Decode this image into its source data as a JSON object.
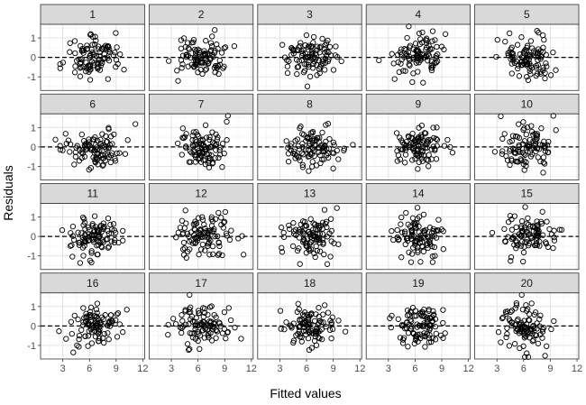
{
  "chart_data": {
    "type": "scatter",
    "layout": "facet-grid",
    "xlabel": "Fitted values",
    "ylabel": "Residuals",
    "xlim": [
      0.5,
      12.2
    ],
    "ylim": [
      -1.7,
      1.7
    ],
    "x_ticks": [
      3,
      6,
      9,
      12
    ],
    "y_ticks": [
      -1,
      0,
      1
    ],
    "reference_line": {
      "y": 0,
      "style": "dashed"
    },
    "grid": true,
    "panel_background": "#ffffff",
    "strip_background": "#d9d9d9",
    "point_style": "open-circle",
    "points_per_panel": 100,
    "panels": [
      {
        "label": "1",
        "x_range": [
          1.2,
          11.8
        ],
        "spread": 0.55,
        "seed": 11
      },
      {
        "label": "2",
        "x_range": [
          1.2,
          11.8
        ],
        "spread": 0.55,
        "seed": 12
      },
      {
        "label": "3",
        "x_range": [
          1.2,
          11.8
        ],
        "spread": 0.55,
        "seed": 13
      },
      {
        "label": "4",
        "x_range": [
          1.2,
          11.8
        ],
        "spread": 0.55,
        "seed": 14
      },
      {
        "label": "5",
        "x_range": [
          1.2,
          11.8
        ],
        "spread": 0.55,
        "seed": 15
      },
      {
        "label": "6",
        "x_range": [
          1.2,
          11.8
        ],
        "spread": 0.5,
        "seed": 16
      },
      {
        "label": "7",
        "x_range": [
          1.2,
          11.8
        ],
        "spread": 0.5,
        "seed": 17
      },
      {
        "label": "8",
        "x_range": [
          1.2,
          11.8
        ],
        "spread": 0.5,
        "seed": 18
      },
      {
        "label": "9",
        "x_range": [
          1.2,
          11.8
        ],
        "spread": 0.45,
        "seed": 19
      },
      {
        "label": "10",
        "x_range": [
          1.2,
          11.8
        ],
        "spread": 0.55,
        "seed": 20
      },
      {
        "label": "11",
        "x_range": [
          1.2,
          11.8
        ],
        "spread": 0.5,
        "seed": 21
      },
      {
        "label": "12",
        "x_range": [
          1.2,
          11.8
        ],
        "spread": 0.5,
        "seed": 22
      },
      {
        "label": "13",
        "x_range": [
          1.2,
          11.8
        ],
        "spread": 0.5,
        "seed": 23
      },
      {
        "label": "14",
        "x_range": [
          1.2,
          11.8
        ],
        "spread": 0.55,
        "seed": 24
      },
      {
        "label": "15",
        "x_range": [
          1.2,
          11.8
        ],
        "spread": 0.55,
        "seed": 25
      },
      {
        "label": "16",
        "x_range": [
          1.2,
          11.8
        ],
        "spread": 0.5,
        "seed": 26
      },
      {
        "label": "17",
        "x_range": [
          1.2,
          11.8
        ],
        "spread": 0.5,
        "seed": 27
      },
      {
        "label": "18",
        "x_range": [
          1.2,
          11.8
        ],
        "spread": 0.5,
        "seed": 28
      },
      {
        "label": "19",
        "x_range": [
          1.2,
          11.8
        ],
        "spread": 0.5,
        "seed": 29
      },
      {
        "label": "20",
        "x_range": [
          1.2,
          11.8
        ],
        "spread": 0.55,
        "seed": 30
      }
    ]
  }
}
